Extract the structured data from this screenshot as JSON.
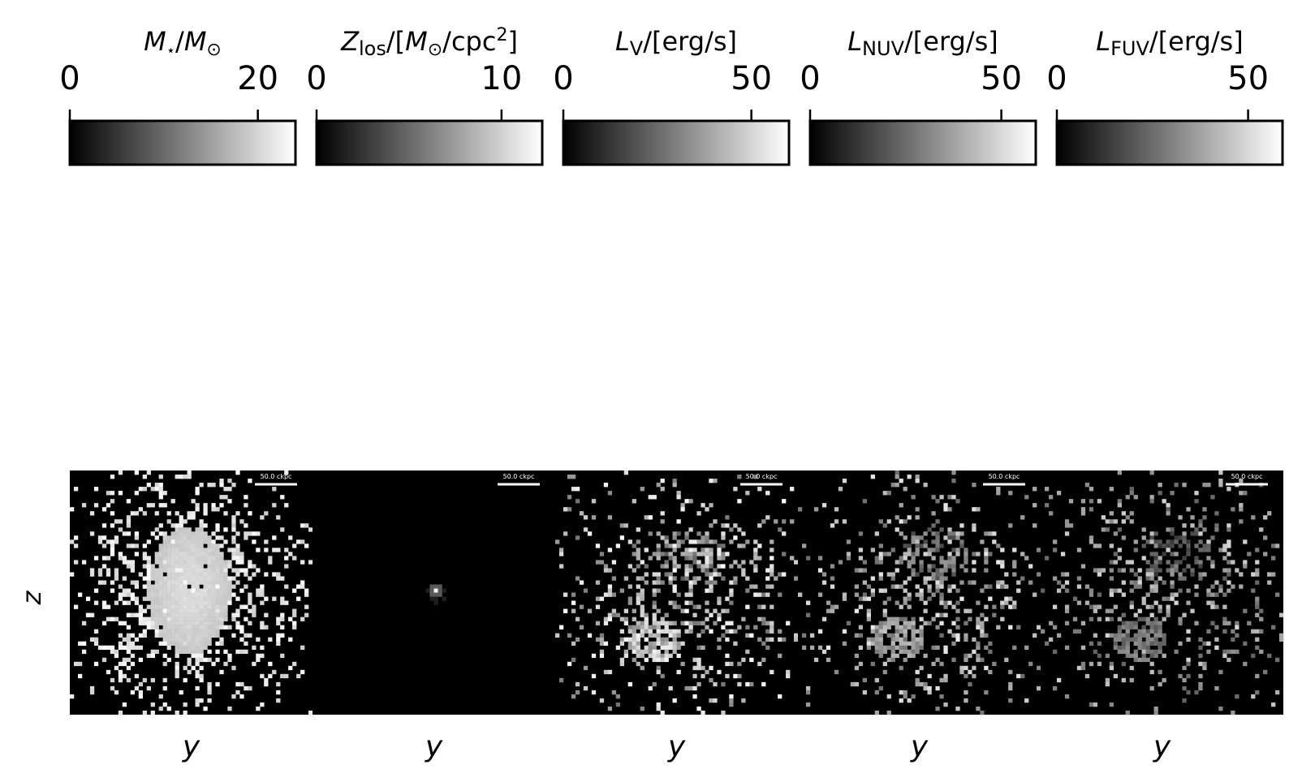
{
  "figure": {
    "colormap": "gray",
    "background": "#ffffff",
    "image_background": "#000000",
    "ylabel": "z"
  },
  "chart_data": [
    {
      "type": "heatmap",
      "colorbar_label": "M⋆/M⊙",
      "colorbar_ticks": [
        "0",
        "20"
      ],
      "colorbar_tick_values": [
        0,
        20
      ],
      "colorbar_range": [
        0,
        24
      ],
      "xlabel": "y",
      "ylabel": "z",
      "scalebar_label": "50.0 ckpc",
      "pattern": "stellar_mass"
    },
    {
      "type": "heatmap",
      "colorbar_label": "Zlos/[M⊙/cpc2]",
      "colorbar_ticks": [
        "0",
        "10"
      ],
      "colorbar_tick_values": [
        0,
        10
      ],
      "colorbar_range": [
        0,
        12.2
      ],
      "xlabel": "y",
      "ylabel": "",
      "scalebar_label": "50.0 ckpc",
      "pattern": "metal_column"
    },
    {
      "type": "heatmap",
      "colorbar_label": "LV/[erg/s]",
      "colorbar_ticks": [
        "0",
        "50"
      ],
      "colorbar_tick_values": [
        0,
        50
      ],
      "colorbar_range": [
        0,
        60
      ],
      "xlabel": "y",
      "ylabel": "",
      "scalebar_label": "50.0 ckpc",
      "pattern": "v_band"
    },
    {
      "type": "heatmap",
      "colorbar_label": "LNUV/[erg/s]",
      "colorbar_ticks": [
        "0",
        "50"
      ],
      "colorbar_tick_values": [
        0,
        50
      ],
      "colorbar_range": [
        0,
        59
      ],
      "xlabel": "y",
      "ylabel": "",
      "scalebar_label": "50.0 ckpc",
      "pattern": "nuv_band"
    },
    {
      "type": "heatmap",
      "colorbar_label": "LFUV/[erg/s]",
      "colorbar_ticks": [
        "0",
        "50"
      ],
      "colorbar_tick_values": [
        0,
        50
      ],
      "colorbar_range": [
        0,
        59
      ],
      "xlabel": "y",
      "ylabel": "",
      "scalebar_label": "50.0 ckpc",
      "pattern": "fuv_band"
    }
  ]
}
